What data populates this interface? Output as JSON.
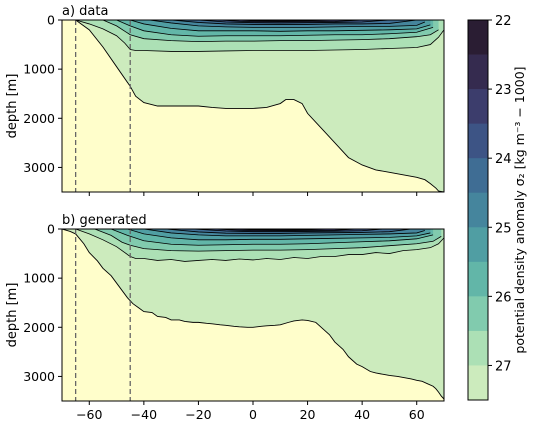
{
  "chart_data": [
    {
      "type": "area",
      "title": "a) data",
      "ylabel": "depth [m]",
      "xlim": [
        -70,
        70
      ],
      "ylim": [
        3500,
        0
      ],
      "y_ticks": [
        0,
        1000,
        2000,
        3000
      ],
      "y_tick_labels": [
        "0",
        "1000",
        "2000",
        "3000"
      ],
      "x_ticks": [
        -60,
        -40,
        -20,
        0,
        20,
        40,
        60
      ],
      "dashed_vlines": [
        -65,
        -45
      ],
      "bottom_boundary": {
        "x": [
          -70,
          -65,
          -60,
          -55,
          -50,
          -45,
          -43,
          -40,
          -35,
          -30,
          -25,
          -20,
          -15,
          -10,
          -5,
          0,
          5,
          10,
          12,
          15,
          18,
          20,
          25,
          30,
          35,
          40,
          45,
          50,
          55,
          60,
          63,
          65,
          67,
          68,
          70
        ],
        "y": [
          0,
          0,
          200,
          550,
          950,
          1350,
          1550,
          1680,
          1750,
          1750,
          1750,
          1750,
          1780,
          1800,
          1800,
          1800,
          1780,
          1700,
          1620,
          1620,
          1700,
          1900,
          2200,
          2500,
          2800,
          2950,
          3050,
          3100,
          3150,
          3200,
          3250,
          3330,
          3420,
          3480,
          3500
        ]
      },
      "contour_lines": [
        {
          "level": "27.0",
          "x": [
            -65,
            -60,
            -55,
            -50,
            -47,
            -45,
            -43,
            -40,
            -30,
            -20,
            -10,
            0,
            10,
            20,
            30,
            40,
            50,
            60,
            65,
            68,
            70
          ],
          "y": [
            0,
            80,
            180,
            320,
            470,
            600,
            620,
            620,
            640,
            640,
            630,
            620,
            620,
            620,
            610,
            600,
            580,
            560,
            500,
            350,
            200
          ]
        },
        {
          "level": "26.5",
          "x": [
            -55,
            -50,
            -45,
            -40,
            -30,
            -20,
            -10,
            0,
            10,
            20,
            30,
            40,
            50,
            60,
            65,
            68
          ],
          "y": [
            0,
            120,
            300,
            380,
            420,
            440,
            430,
            430,
            420,
            420,
            410,
            400,
            380,
            340,
            300,
            200
          ]
        },
        {
          "level": "26.0",
          "x": [
            -50,
            -45,
            -40,
            -30,
            -20,
            -10,
            0,
            10,
            20,
            30,
            40,
            50,
            60,
            66
          ],
          "y": [
            0,
            120,
            220,
            300,
            330,
            320,
            320,
            320,
            310,
            300,
            300,
            280,
            250,
            150
          ]
        },
        {
          "level": "25.5",
          "x": [
            -45,
            -40,
            -30,
            -20,
            -10,
            0,
            10,
            20,
            30,
            40,
            50,
            60,
            65
          ],
          "y": [
            0,
            80,
            170,
            220,
            220,
            220,
            230,
            220,
            220,
            210,
            200,
            180,
            100
          ]
        },
        {
          "level": "25.0",
          "x": [
            -38,
            -30,
            -20,
            -10,
            0,
            10,
            20,
            30,
            40,
            50,
            60,
            63
          ],
          "y": [
            0,
            60,
            120,
            140,
            150,
            150,
            150,
            140,
            130,
            130,
            110,
            40
          ]
        },
        {
          "level": "24.5",
          "x": [
            -30,
            -20,
            -10,
            0,
            10,
            20,
            30,
            40,
            50,
            60
          ],
          "y": [
            0,
            50,
            80,
            90,
            90,
            90,
            80,
            80,
            70,
            0
          ]
        },
        {
          "level": "24.0",
          "x": [
            -20,
            -10,
            0,
            10,
            20,
            30,
            40,
            50
          ],
          "y": [
            0,
            40,
            55,
            60,
            55,
            50,
            40,
            0
          ]
        },
        {
          "level": "23.5",
          "x": [
            -12,
            -5,
            0,
            10,
            20,
            30,
            40
          ],
          "y": [
            0,
            25,
            35,
            35,
            35,
            30,
            0
          ]
        },
        {
          "level": "23.0",
          "x": [
            -5,
            0,
            10,
            20,
            30
          ],
          "y": [
            0,
            15,
            20,
            15,
            0
          ]
        }
      ]
    },
    {
      "type": "area",
      "title": "b) generated",
      "ylabel": "depth [m]",
      "xlim": [
        -70,
        70
      ],
      "ylim": [
        3500,
        0
      ],
      "y_ticks": [
        0,
        1000,
        2000,
        3000
      ],
      "y_tick_labels": [
        "0",
        "1000",
        "2000",
        "3000"
      ],
      "x_ticks": [
        -60,
        -40,
        -20,
        0,
        20,
        40,
        60
      ],
      "x_tick_labels": [
        "−60",
        "−40",
        "−20",
        "0",
        "20",
        "40",
        "60"
      ],
      "dashed_vlines": [
        -65,
        -45
      ],
      "bottom_boundary": {
        "x": [
          -70,
          -67,
          -65,
          -62,
          -60,
          -57,
          -55,
          -52,
          -50,
          -48,
          -46,
          -44,
          -42,
          -40,
          -37,
          -35,
          -32,
          -30,
          -27,
          -25,
          -22,
          -20,
          -17,
          -15,
          -12,
          -10,
          -7,
          -5,
          -2,
          0,
          3,
          5,
          8,
          10,
          13,
          15,
          18,
          20,
          23,
          25,
          28,
          30,
          33,
          35,
          38,
          40,
          43,
          45,
          48,
          50,
          53,
          55,
          58,
          60,
          62,
          64,
          66,
          67,
          68,
          69,
          70
        ],
        "y": [
          0,
          50,
          100,
          300,
          480,
          650,
          800,
          950,
          1100,
          1250,
          1400,
          1520,
          1600,
          1680,
          1700,
          1780,
          1800,
          1850,
          1850,
          1880,
          1900,
          1900,
          1920,
          1930,
          1950,
          1960,
          1980,
          1990,
          2000,
          2000,
          1980,
          1970,
          1960,
          1950,
          1900,
          1870,
          1850,
          1860,
          1900,
          2000,
          2150,
          2300,
          2450,
          2600,
          2750,
          2800,
          2900,
          2930,
          2960,
          2980,
          3000,
          3020,
          3050,
          3080,
          3100,
          3150,
          3200,
          3250,
          3320,
          3400,
          3460
        ]
      },
      "contour_lines": [
        {
          "level": "27.0",
          "x": [
            -65,
            -60,
            -55,
            -50,
            -47,
            -45,
            -43,
            -40,
            -35,
            -30,
            -25,
            -20,
            -15,
            -10,
            -5,
            0,
            5,
            10,
            15,
            20,
            25,
            30,
            35,
            40,
            45,
            50,
            55,
            60,
            65,
            68,
            70
          ],
          "y": [
            0,
            100,
            220,
            360,
            480,
            560,
            600,
            600,
            640,
            620,
            660,
            640,
            620,
            640,
            610,
            630,
            600,
            620,
            580,
            600,
            560,
            560,
            520,
            520,
            480,
            500,
            440,
            420,
            380,
            300,
            180
          ]
        },
        {
          "level": "26.5",
          "x": [
            -58,
            -52,
            -48,
            -45,
            -40,
            -30,
            -20,
            -10,
            0,
            10,
            20,
            30,
            40,
            50,
            60,
            66,
            69
          ],
          "y": [
            0,
            130,
            270,
            330,
            400,
            440,
            450,
            440,
            430,
            430,
            420,
            400,
            380,
            340,
            300,
            250,
            150
          ]
        },
        {
          "level": "26.0",
          "x": [
            -52,
            -46,
            -40,
            -30,
            -20,
            -10,
            0,
            10,
            20,
            30,
            40,
            50,
            60,
            66
          ],
          "y": [
            0,
            130,
            240,
            310,
            330,
            320,
            310,
            310,
            300,
            280,
            260,
            240,
            200,
            120
          ]
        },
        {
          "level": "25.5",
          "x": [
            -46,
            -40,
            -30,
            -20,
            -10,
            0,
            10,
            20,
            30,
            40,
            50,
            60,
            65
          ],
          "y": [
            0,
            100,
            180,
            220,
            220,
            210,
            210,
            200,
            190,
            180,
            170,
            140,
            80
          ]
        },
        {
          "level": "25.0",
          "x": [
            -40,
            -30,
            -20,
            -10,
            0,
            10,
            20,
            30,
            40,
            50,
            60,
            63
          ],
          "y": [
            0,
            80,
            120,
            140,
            140,
            140,
            130,
            120,
            110,
            100,
            80,
            30
          ]
        },
        {
          "level": "24.5",
          "x": [
            -32,
            -20,
            -10,
            0,
            10,
            20,
            30,
            40,
            50,
            58
          ],
          "y": [
            0,
            60,
            85,
            90,
            90,
            80,
            75,
            70,
            55,
            0
          ]
        },
        {
          "level": "24.0",
          "x": [
            -22,
            -10,
            0,
            10,
            20,
            30,
            40,
            48
          ],
          "y": [
            0,
            40,
            55,
            55,
            50,
            45,
            35,
            0
          ]
        },
        {
          "level": "23.5",
          "x": [
            -14,
            -5,
            0,
            10,
            20,
            30,
            38
          ],
          "y": [
            0,
            25,
            35,
            35,
            30,
            25,
            0
          ]
        },
        {
          "level": "23.0",
          "x": [
            -8,
            0,
            10,
            20,
            28
          ],
          "y": [
            0,
            15,
            20,
            15,
            0
          ]
        }
      ]
    }
  ],
  "colorbar": {
    "label": "potential density anomaly  σ₂ [kg m⁻³ − 1000]",
    "range": [
      22,
      27.5
    ],
    "levels": [
      22.0,
      22.5,
      23.0,
      23.5,
      24.0,
      24.5,
      25.0,
      25.5,
      26.0,
      26.5,
      27.0,
      27.5
    ],
    "colors": [
      "#2a1d33",
      "#352b4f",
      "#3c3d6c",
      "#3d5485",
      "#3f6d94",
      "#45859d",
      "#509ea3",
      "#62b6a8",
      "#81cbae",
      "#ace0b5",
      "#ccebbd",
      "#fffecb"
    ],
    "tick_values": [
      22,
      23,
      24,
      25,
      26,
      27
    ],
    "tick_labels": [
      "22",
      "23",
      "24",
      "25",
      "26",
      "27"
    ]
  }
}
